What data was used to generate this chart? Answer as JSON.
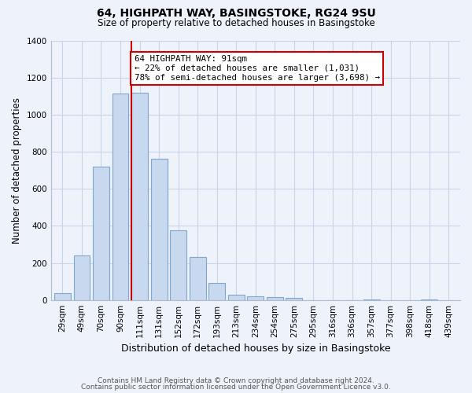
{
  "title": "64, HIGHPATH WAY, BASINGSTOKE, RG24 9SU",
  "subtitle": "Size of property relative to detached houses in Basingstoke",
  "xlabel": "Distribution of detached houses by size in Basingstoke",
  "ylabel": "Number of detached properties",
  "bar_labels": [
    "29sqm",
    "49sqm",
    "70sqm",
    "90sqm",
    "111sqm",
    "131sqm",
    "152sqm",
    "172sqm",
    "193sqm",
    "213sqm",
    "234sqm",
    "254sqm",
    "275sqm",
    "295sqm",
    "316sqm",
    "336sqm",
    "357sqm",
    "377sqm",
    "398sqm",
    "418sqm",
    "439sqm"
  ],
  "bar_values": [
    35,
    240,
    720,
    1115,
    1120,
    760,
    375,
    230,
    90,
    30,
    20,
    15,
    10,
    0,
    0,
    0,
    5,
    0,
    0,
    5,
    0
  ],
  "bar_color": "#c8d8ee",
  "bar_edge_color": "#7fa8cc",
  "property_line_bar_index": 4,
  "annotation_title": "64 HIGHPATH WAY: 91sqm",
  "annotation_line1": "← 22% of detached houses are smaller (1,031)",
  "annotation_line2": "78% of semi-detached houses are larger (3,698) →",
  "annotation_box_color": "#ffffff",
  "annotation_box_edge": "#cc0000",
  "vline_color": "#cc0000",
  "ylim": [
    0,
    1400
  ],
  "yticks": [
    0,
    200,
    400,
    600,
    800,
    1000,
    1200,
    1400
  ],
  "grid_color": "#c8d4e8",
  "background_color": "#eef2fa",
  "footer_line1": "Contains HM Land Registry data © Crown copyright and database right 2024.",
  "footer_line2": "Contains public sector information licensed under the Open Government Licence v3.0."
}
